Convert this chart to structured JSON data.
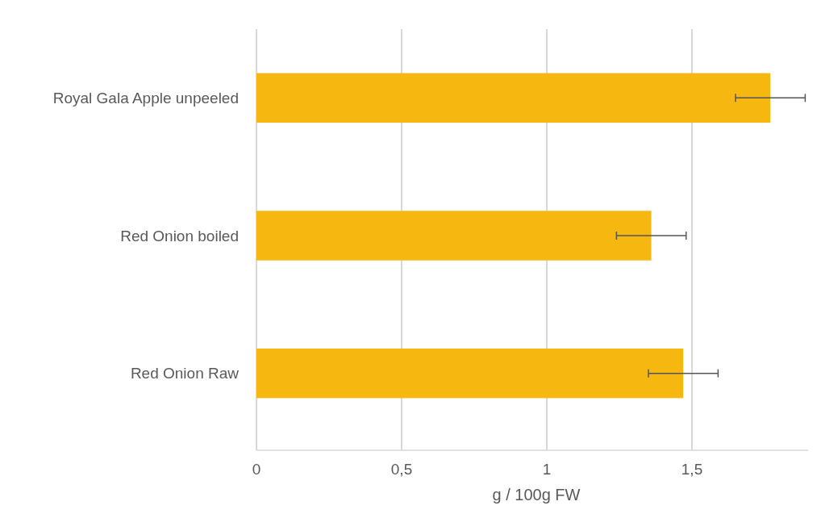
{
  "chart_data": {
    "type": "bar",
    "orientation": "horizontal",
    "xlabel": "g / 100g FW",
    "categories": [
      "Royal Gala Apple unpeeled",
      "Red Onion boiled",
      "Red Onion Raw"
    ],
    "values": [
      1.77,
      1.36,
      1.47
    ],
    "errors": [
      0.12,
      0.12,
      0.12
    ],
    "color": "#f6b711",
    "xlim": [
      0,
      1.9
    ],
    "xticks": [
      0,
      {
        "value": 0.5,
        "label": "0,5"
      },
      1,
      {
        "value": 1.5,
        "label": "1,5"
      }
    ],
    "grid": "x"
  }
}
